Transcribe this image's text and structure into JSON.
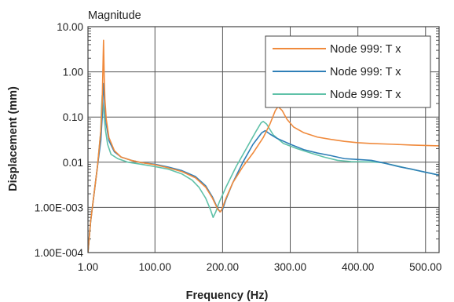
{
  "chart_data": {
    "type": "line",
    "title": "Magnitude",
    "xlabel": "Frequency (Hz)",
    "ylabel": "Displacement (mm)",
    "xlim": [
      1,
      520
    ],
    "ylim": [
      0.0001,
      10
    ],
    "yscale": "log",
    "grid": true,
    "legend_position": "top-right",
    "x_ticks": [
      {
        "value": 1,
        "label": "1.00"
      },
      {
        "value": 100,
        "label": "100.00"
      },
      {
        "value": 200,
        "label": "200.00"
      },
      {
        "value": 300,
        "label": "300.00"
      },
      {
        "value": 400,
        "label": "400.00"
      },
      {
        "value": 500,
        "label": "500.00"
      }
    ],
    "y_ticks": [
      {
        "value": 10,
        "label": "10.00"
      },
      {
        "value": 1,
        "label": "1.00"
      },
      {
        "value": 0.1,
        "label": "0.10"
      },
      {
        "value": 0.01,
        "label": "0.01"
      },
      {
        "value": 0.001,
        "label": "1.00E-003"
      },
      {
        "value": 0.0001,
        "label": "1.00E-004"
      }
    ],
    "series": [
      {
        "name": "Node 999: T x",
        "color": "#f08a3c",
        "points": [
          [
            1,
            0.0001
          ],
          [
            5,
            0.0005
          ],
          [
            10,
            0.002
          ],
          [
            15,
            0.008
          ],
          [
            20,
            0.05
          ],
          [
            22,
            0.2
          ],
          [
            23,
            1.0
          ],
          [
            24,
            5.0
          ],
          [
            25,
            0.8
          ],
          [
            26,
            0.25
          ],
          [
            28,
            0.09
          ],
          [
            32,
            0.035
          ],
          [
            40,
            0.018
          ],
          [
            50,
            0.013
          ],
          [
            65,
            0.011
          ],
          [
            80,
            0.0098
          ],
          [
            100,
            0.0088
          ],
          [
            120,
            0.0075
          ],
          [
            140,
            0.0062
          ],
          [
            160,
            0.0045
          ],
          [
            175,
            0.0028
          ],
          [
            185,
            0.0016
          ],
          [
            193,
            0.0009
          ],
          [
            197,
            0.0008
          ],
          [
            200,
            0.001
          ],
          [
            205,
            0.0016
          ],
          [
            215,
            0.0035
          ],
          [
            230,
            0.008
          ],
          [
            245,
            0.016
          ],
          [
            260,
            0.035
          ],
          [
            270,
            0.07
          ],
          [
            278,
            0.14
          ],
          [
            282,
            0.17
          ],
          [
            288,
            0.14
          ],
          [
            295,
            0.09
          ],
          [
            305,
            0.06
          ],
          [
            320,
            0.045
          ],
          [
            340,
            0.036
          ],
          [
            360,
            0.032
          ],
          [
            380,
            0.029
          ],
          [
            400,
            0.027
          ],
          [
            420,
            0.026
          ],
          [
            450,
            0.025
          ],
          [
            480,
            0.024
          ],
          [
            520,
            0.023
          ]
        ]
      },
      {
        "name": "Node 999: T x",
        "color": "#2f7fb7",
        "points": [
          [
            1,
            0.0001
          ],
          [
            5,
            0.0005
          ],
          [
            10,
            0.002
          ],
          [
            15,
            0.008
          ],
          [
            20,
            0.03
          ],
          [
            22,
            0.1
          ],
          [
            23,
            0.3
          ],
          [
            24,
            0.55
          ],
          [
            25,
            0.3
          ],
          [
            26,
            0.15
          ],
          [
            28,
            0.07
          ],
          [
            32,
            0.03
          ],
          [
            40,
            0.017
          ],
          [
            50,
            0.013
          ],
          [
            65,
            0.011
          ],
          [
            80,
            0.0098
          ],
          [
            100,
            0.009
          ],
          [
            120,
            0.0078
          ],
          [
            140,
            0.0065
          ],
          [
            160,
            0.0048
          ],
          [
            175,
            0.003
          ],
          [
            185,
            0.0017
          ],
          [
            192,
            0.001
          ],
          [
            196,
            0.0008
          ],
          [
            200,
            0.0009
          ],
          [
            205,
            0.0015
          ],
          [
            215,
            0.0035
          ],
          [
            230,
            0.01
          ],
          [
            245,
            0.025
          ],
          [
            258,
            0.045
          ],
          [
            263,
            0.05
          ],
          [
            270,
            0.042
          ],
          [
            280,
            0.034
          ],
          [
            300,
            0.025
          ],
          [
            320,
            0.019
          ],
          [
            340,
            0.016
          ],
          [
            360,
            0.014
          ],
          [
            380,
            0.012
          ],
          [
            400,
            0.0115
          ],
          [
            420,
            0.011
          ],
          [
            440,
            0.0095
          ],
          [
            460,
            0.008
          ],
          [
            480,
            0.007
          ],
          [
            500,
            0.006
          ],
          [
            520,
            0.0052
          ]
        ]
      },
      {
        "name": "Node 999: T x",
        "color": "#5fc1a8",
        "points": [
          [
            1,
            0.0001
          ],
          [
            5,
            0.0005
          ],
          [
            10,
            0.002
          ],
          [
            15,
            0.008
          ],
          [
            20,
            0.05
          ],
          [
            21,
            0.15
          ],
          [
            22,
            0.3
          ],
          [
            23,
            0.2
          ],
          [
            25,
            0.1
          ],
          [
            27,
            0.05
          ],
          [
            30,
            0.025
          ],
          [
            35,
            0.015
          ],
          [
            45,
            0.012
          ],
          [
            60,
            0.01
          ],
          [
            80,
            0.009
          ],
          [
            100,
            0.008
          ],
          [
            120,
            0.007
          ],
          [
            140,
            0.0055
          ],
          [
            155,
            0.004
          ],
          [
            165,
            0.0028
          ],
          [
            175,
            0.0016
          ],
          [
            182,
            0.0009
          ],
          [
            186,
            0.0006
          ],
          [
            190,
            0.0008
          ],
          [
            195,
            0.0013
          ],
          [
            205,
            0.0028
          ],
          [
            220,
            0.008
          ],
          [
            235,
            0.02
          ],
          [
            250,
            0.05
          ],
          [
            257,
            0.075
          ],
          [
            260,
            0.08
          ],
          [
            265,
            0.07
          ],
          [
            275,
            0.04
          ],
          [
            290,
            0.026
          ],
          [
            310,
            0.02
          ],
          [
            330,
            0.016
          ],
          [
            350,
            0.013
          ],
          [
            370,
            0.011
          ],
          [
            390,
            0.0103
          ],
          [
            410,
            0.0102
          ],
          [
            420,
            0.0102
          ],
          [
            435,
            0.0098
          ],
          [
            455,
            0.0085
          ],
          [
            475,
            0.0072
          ],
          [
            500,
            0.006
          ],
          [
            520,
            0.0052
          ]
        ]
      }
    ]
  }
}
